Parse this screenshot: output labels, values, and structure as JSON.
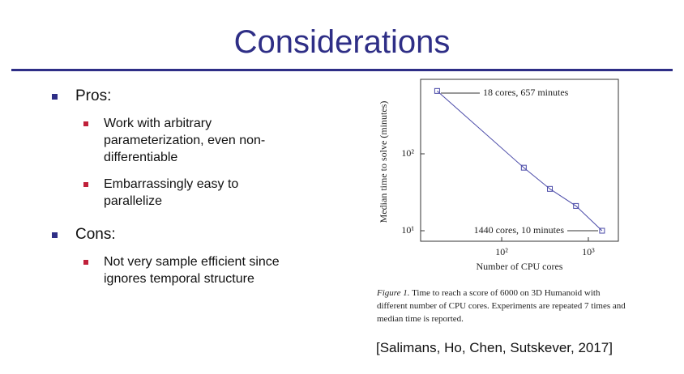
{
  "slide": {
    "title": "Considerations",
    "bullets": [
      {
        "text": "Pros:",
        "items": [
          "Work with arbitrary parameterization, even non-differentiable",
          "Embarrassingly easy to parallelize"
        ]
      },
      {
        "text": "Cons:",
        "items": [
          "Not very sample efficient since ignores temporal structure"
        ]
      }
    ],
    "caption": {
      "label": "Figure 1.",
      "text": "Time to reach a score of 6000 on 3D Humanoid with different number of CPU cores. Experiments are repeated 7 times and median time is reported."
    },
    "citation": "[Salimans, Ho, Chen, Sutskever, 2017]"
  },
  "chart_data": {
    "type": "line",
    "x_label": "Number of CPU cores",
    "y_label": "Median time to solve (minutes)",
    "x": [
      18,
      180,
      360,
      720,
      1440
    ],
    "series": [
      {
        "name": "Median time",
        "color": "#4a4aa8",
        "values": [
          657,
          66,
          35,
          21,
          10
        ]
      }
    ],
    "xscale": "log",
    "yscale": "log",
    "xlim": [
      11.6,
      2220
    ],
    "ylim": [
      7.3,
      930
    ],
    "xticks": [
      {
        "value": 100,
        "label": "10²"
      },
      {
        "value": 1000,
        "label": "10³"
      }
    ],
    "yticks": [
      {
        "value": 10,
        "label": "10¹"
      },
      {
        "value": 100,
        "label": "10²"
      }
    ],
    "annotations": [
      "18 cores, 657 minutes",
      "1440 cores, 10 minutes"
    ]
  }
}
